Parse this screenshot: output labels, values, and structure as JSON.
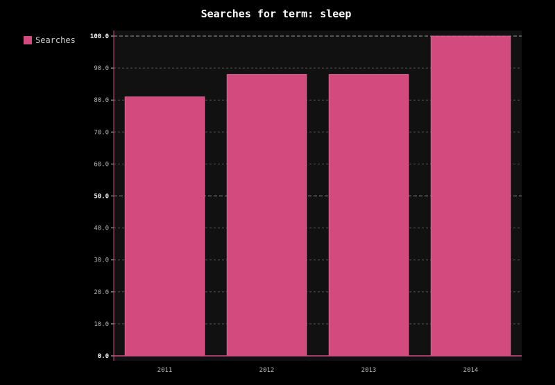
{
  "colors": {
    "background": "#000000",
    "plot_background": "#111111",
    "bar": "#d34b7e",
    "text": "#dddddd",
    "grid": "#555555",
    "axis": "#d34b7e"
  },
  "chart_data": {
    "type": "bar",
    "title": "Searches for term: sleep",
    "xlabel": "",
    "ylabel": "",
    "categories": [
      "2011",
      "2012",
      "2013",
      "2014"
    ],
    "series": [
      {
        "name": "Searches",
        "values": [
          81,
          88,
          88,
          100
        ]
      }
    ],
    "ylim": [
      0,
      100
    ],
    "yticks": [
      "0.0",
      "10.0",
      "20.0",
      "30.0",
      "40.0",
      "50.0",
      "60.0",
      "70.0",
      "80.0",
      "90.0",
      "100.0"
    ],
    "major_yticks": [
      "0.0",
      "50.0",
      "100.0"
    ],
    "grid": true,
    "legend_position": "top-left"
  }
}
